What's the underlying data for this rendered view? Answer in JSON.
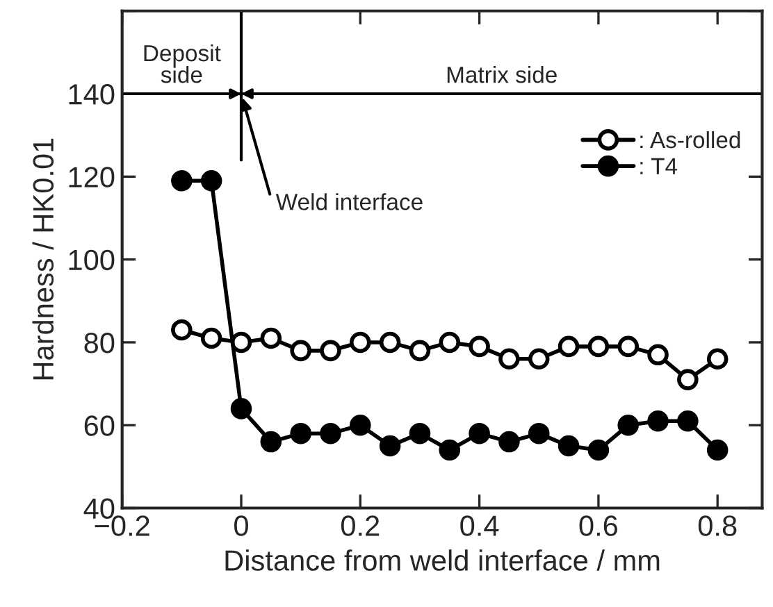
{
  "chart_data": {
    "type": "line",
    "xlabel": "Distance from weld interface / mm",
    "ylabel": "Hardness / HK0.01",
    "x": [
      -0.1,
      -0.05,
      0,
      0.05,
      0.1,
      0.15,
      0.2,
      0.25,
      0.3,
      0.35,
      0.4,
      0.45,
      0.5,
      0.55,
      0.6,
      0.65,
      0.7,
      0.75,
      0.8
    ],
    "series": [
      {
        "name": ": As-rolled",
        "color": "#000000",
        "values": [
          83,
          81,
          80,
          81,
          78,
          78,
          80,
          80,
          78,
          80,
          79,
          76,
          76,
          79,
          79,
          79,
          77,
          71,
          76
        ]
      },
      {
        "name": ": T4",
        "color": "#000000",
        "values": [
          119,
          119,
          64,
          56,
          58,
          58,
          60,
          55,
          58,
          54,
          58,
          56,
          58,
          55,
          54,
          60,
          61,
          61,
          54
        ]
      }
    ],
    "xlim": [
      -0.2,
      0.875
    ],
    "xticks": [
      {
        "value": -0.2,
        "label": "−0.2"
      },
      0,
      0.2,
      0.4,
      0.6,
      0.8
    ],
    "ylim": [
      40,
      160
    ],
    "yticks": [
      40,
      60,
      80,
      100,
      120,
      140,
      {
        "value": 160,
        "label": null
      }
    ],
    "annotations": [
      "Deposit\nside",
      "Matrix side"
    ],
    "ref_lines": [
      {
        "axis": "x",
        "value": 0,
        "label": "Weld interface"
      },
      {
        "axis": "y",
        "value": 140
      }
    ],
    "marker": "circle",
    "line_style": "solid",
    "legend": "top right",
    "grid": false
  }
}
